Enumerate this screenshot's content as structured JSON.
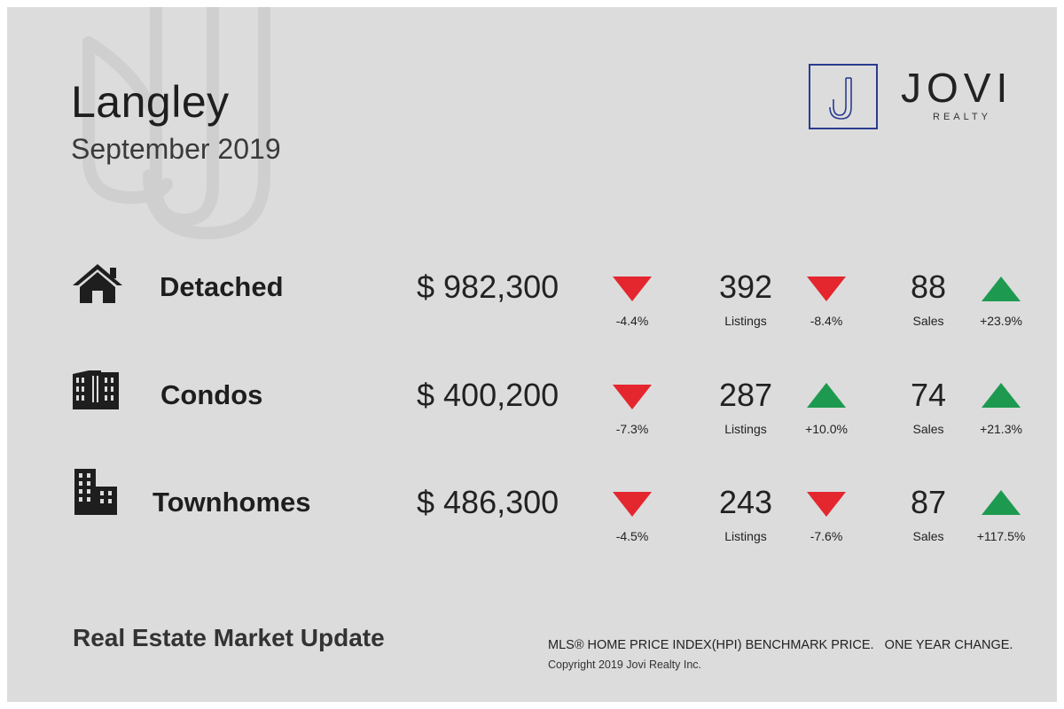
{
  "header": {
    "city": "Langley",
    "period": "September 2019"
  },
  "brand": {
    "name": "JOVI",
    "subtitle": "REALTY",
    "accent": "#2a3c8f"
  },
  "colors": {
    "down": "#e4262f",
    "up": "#1d9a4f"
  },
  "rows": [
    {
      "type": "Detached",
      "icon": "house-icon",
      "price": "$ 982,300",
      "price_change": "-4.4%",
      "price_dir": "down",
      "listings": "392",
      "listings_label": "Listings",
      "listings_change": "-8.4%",
      "listings_dir": "down",
      "sales": "88",
      "sales_label": "Sales",
      "sales_change": "+23.9%",
      "sales_dir": "up"
    },
    {
      "type": "Condos",
      "icon": "apartment-building-icon",
      "price": "$ 400,200",
      "price_change": "-7.3%",
      "price_dir": "down",
      "listings": "287",
      "listings_label": "Listings",
      "listings_change": "+10.0%",
      "listings_dir": "up",
      "sales": "74",
      "sales_label": "Sales",
      "sales_change": "+21.3%",
      "sales_dir": "up"
    },
    {
      "type": "Townhomes",
      "icon": "townhome-building-icon",
      "price": "$ 486,300",
      "price_change": "-4.5%",
      "price_dir": "down",
      "listings": "243",
      "listings_label": "Listings",
      "listings_change": "-7.6%",
      "listings_dir": "down",
      "sales": "87",
      "sales_label": "Sales",
      "sales_change": "+117.5%",
      "sales_dir": "up"
    }
  ],
  "footer": {
    "title": "Real Estate Market Update",
    "note": "MLS® HOME PRICE INDEX(HPI) BENCHMARK PRICE.   ONE YEAR CHANGE.",
    "copyright": "Copyright 2019 Jovi Realty Inc."
  }
}
